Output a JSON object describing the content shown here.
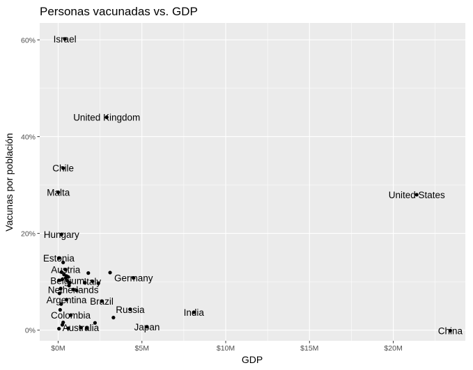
{
  "chart_data": {
    "type": "scatter",
    "title": "Personas vacunadas vs. GDP",
    "xlabel": "GDP",
    "ylabel": "Vacunas por población",
    "xlim": [
      -1.1,
      24.3
    ],
    "ylim": [
      -2.2,
      63.5
    ],
    "x_ticks": [
      0,
      5,
      10,
      15,
      20
    ],
    "x_tick_labels": [
      "$0M",
      "$5M",
      "$10M",
      "$15M",
      "$20M"
    ],
    "y_ticks": [
      0,
      20,
      40,
      60
    ],
    "y_tick_labels": [
      "0%",
      "20%",
      "40%",
      "60%"
    ],
    "grid": true,
    "panel_background": "#ebebeb",
    "grid_color": "#ffffff",
    "point_color": "#000000",
    "labeled_points": [
      {
        "label": "Israel",
        "x": 0.4,
        "y": 60.2
      },
      {
        "label": "United Kingdom",
        "x": 2.9,
        "y": 44.0
      },
      {
        "label": "Chile",
        "x": 0.3,
        "y": 33.5
      },
      {
        "label": "Malta",
        "x": 0.01,
        "y": 28.5
      },
      {
        "label": "United States",
        "x": 21.4,
        "y": 28.0
      },
      {
        "label": "Hungary",
        "x": 0.2,
        "y": 19.8
      },
      {
        "label": "Estonia",
        "x": 0.04,
        "y": 14.9
      },
      {
        "label": "Austria",
        "x": 0.45,
        "y": 12.5
      },
      {
        "label": "Belgium",
        "x": 0.55,
        "y": 10.2
      },
      {
        "label": "Italy",
        "x": 2.05,
        "y": 10.1
      },
      {
        "label": "Germany",
        "x": 4.5,
        "y": 10.8
      },
      {
        "label": "Netherlands",
        "x": 0.9,
        "y": 8.4
      },
      {
        "label": "Argentina",
        "x": 0.5,
        "y": 6.3
      },
      {
        "label": "Brazil",
        "x": 2.6,
        "y": 6.0
      },
      {
        "label": "Russia",
        "x": 4.3,
        "y": 4.3
      },
      {
        "label": "India",
        "x": 8.1,
        "y": 3.7
      },
      {
        "label": "Colombia",
        "x": 0.75,
        "y": 3.1
      },
      {
        "label": "Australia",
        "x": 1.35,
        "y": 0.5
      },
      {
        "label": "Japan",
        "x": 5.3,
        "y": 0.7
      },
      {
        "label": "China",
        "x": 23.4,
        "y": -0.1
      }
    ],
    "unlabeled_points": [
      {
        "x": 0.3,
        "y": 14.0
      },
      {
        "x": 0.2,
        "y": 12.0
      },
      {
        "x": 0.35,
        "y": 11.5
      },
      {
        "x": 0.5,
        "y": 11.2
      },
      {
        "x": 0.6,
        "y": 11.0
      },
      {
        "x": 0.45,
        "y": 10.8
      },
      {
        "x": 0.25,
        "y": 10.5
      },
      {
        "x": 0.05,
        "y": 10.3
      },
      {
        "x": 0.7,
        "y": 9.8
      },
      {
        "x": 0.65,
        "y": 9.2
      },
      {
        "x": 0.15,
        "y": 8.6
      },
      {
        "x": 0.08,
        "y": 7.6
      },
      {
        "x": 0.18,
        "y": 5.4
      },
      {
        "x": 0.12,
        "y": 4.2
      },
      {
        "x": 1.8,
        "y": 11.8
      },
      {
        "x": 3.1,
        "y": 11.9
      },
      {
        "x": 2.4,
        "y": 9.7
      },
      {
        "x": 1.6,
        "y": 9.8
      },
      {
        "x": 1.1,
        "y": 8.2
      },
      {
        "x": 3.3,
        "y": 2.6
      },
      {
        "x": 0.3,
        "y": 1.6
      },
      {
        "x": 0.25,
        "y": 1.1
      },
      {
        "x": 0.05,
        "y": 0.3
      },
      {
        "x": 0.6,
        "y": 0.4
      },
      {
        "x": 1.7,
        "y": 0.4
      },
      {
        "x": 2.2,
        "y": 1.5
      }
    ]
  }
}
